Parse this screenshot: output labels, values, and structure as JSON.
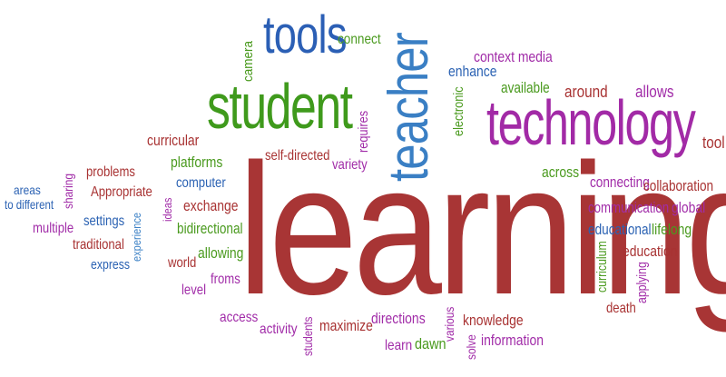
{
  "cloud": {
    "learning": "learning",
    "technology": "technology",
    "student": "student",
    "teacher": "teacher",
    "tools": "tools",
    "connect": "connect",
    "camera": "camera",
    "context_media": "context media",
    "enhance": "enhance",
    "available": "available",
    "around": "around",
    "allows": "allows",
    "electronic": "electronic",
    "requires": "requires",
    "tool": "tool",
    "curricular": "curricular",
    "platforms": "platforms",
    "self_directed": "self-directed",
    "variety": "variety",
    "problems": "problems",
    "sharing": "sharing",
    "areas": "areas",
    "to_different": "to different",
    "appropriate": "Appropriate",
    "multiple": "multiple",
    "settings": "settings",
    "traditional": "traditional",
    "express": "express",
    "experience": "experience",
    "computer": "computer",
    "ideas": "ideas",
    "exchange": "exchange",
    "bidirectional": "bidirectional",
    "allowing": "allowing",
    "world": "world",
    "froms": "froms",
    "level": "level",
    "across": "across",
    "connecting": "connecting",
    "collaboration": "collaboration",
    "communication": "communication",
    "global": "global",
    "educational": "educational",
    "lifelong": "lifelong",
    "curriculum": "curriculum",
    "education": "education",
    "applying": "applying",
    "death": "death",
    "access": "access",
    "activity": "activity",
    "students": "students",
    "maximize": "maximize",
    "directions": "directions",
    "various": "various",
    "knowledge": "knowledge",
    "learn": "learn",
    "dawn": "dawn",
    "solve": "solve",
    "information": "information"
  },
  "colors": {
    "red": "#a83232",
    "green": "#4a9a1e",
    "blue": "#2b62b3",
    "purple": "#a12ca8",
    "light_blue": "#3d82c6"
  }
}
